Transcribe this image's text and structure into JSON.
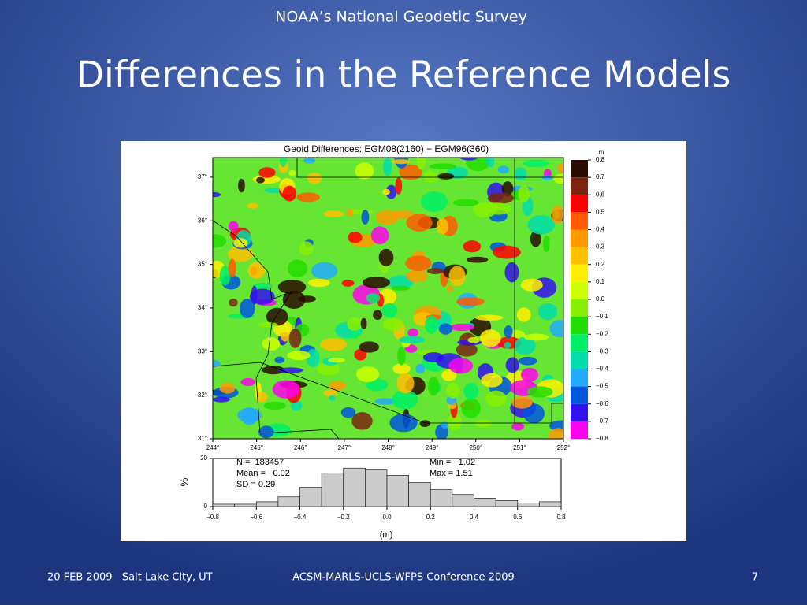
{
  "header": {
    "organization": "NOAA’s National Geodetic Survey",
    "title": "Differences in the Reference Models"
  },
  "map": {
    "title": "Geoid Differences: EGM08(2160) − EGM96(360)",
    "xticks": [
      {
        "value": 244,
        "label": "244°"
      },
      {
        "value": 245,
        "label": "245°"
      },
      {
        "value": 246,
        "label": "246°"
      },
      {
        "value": 247,
        "label": "247°"
      },
      {
        "value": 248,
        "label": "248°"
      },
      {
        "value": 249,
        "label": "249°"
      },
      {
        "value": 250,
        "label": "250°"
      },
      {
        "value": 251,
        "label": "251°"
      },
      {
        "value": 252,
        "label": "252°"
      }
    ],
    "xlim": [
      244,
      252
    ],
    "yticks": [
      {
        "value": 31,
        "label": "31°"
      },
      {
        "value": 32,
        "label": "32°"
      },
      {
        "value": 33,
        "label": "33°"
      },
      {
        "value": 34,
        "label": "34°"
      },
      {
        "value": 35,
        "label": "35°"
      },
      {
        "value": 36,
        "label": "36°"
      },
      {
        "value": 37,
        "label": "37°"
      }
    ],
    "ylim": [
      31,
      37.45
    ],
    "colorbar": {
      "unit": "m",
      "ticks": [
        {
          "value": 0.8,
          "label": "0.8"
        },
        {
          "value": 0.7,
          "label": "0.7"
        },
        {
          "value": 0.6,
          "label": "0.6"
        },
        {
          "value": 0.5,
          "label": "0.5"
        },
        {
          "value": 0.4,
          "label": "0.4"
        },
        {
          "value": 0.3,
          "label": "0.3"
        },
        {
          "value": 0.2,
          "label": "0.2"
        },
        {
          "value": 0.1,
          "label": "0.1"
        },
        {
          "value": 0.0,
          "label": "0.0"
        },
        {
          "value": -0.1,
          "label": "−0.1"
        },
        {
          "value": -0.2,
          "label": "−0.2"
        },
        {
          "value": -0.3,
          "label": "−0.3"
        },
        {
          "value": -0.4,
          "label": "−0.4"
        },
        {
          "value": -0.5,
          "label": "−0.5"
        },
        {
          "value": -0.6,
          "label": "−0.6"
        },
        {
          "value": -0.7,
          "label": "−0.7"
        },
        {
          "value": -0.8,
          "label": "−0.8"
        }
      ],
      "colors": [
        "#2b0c02",
        "#7a2410",
        "#ff0000",
        "#ff5a00",
        "#ff9900",
        "#ffc000",
        "#ffee00",
        "#ccff00",
        "#88ee00",
        "#22dd00",
        "#00ee66",
        "#00ddaa",
        "#22aaff",
        "#0055dd",
        "#3311ee",
        "#ff00ee"
      ]
    }
  },
  "chart_data": {
    "type": "histogram",
    "xlabel": "(m)",
    "ylabel": "%",
    "bins": [
      -0.8,
      -0.7,
      -0.6,
      -0.5,
      -0.4,
      -0.3,
      -0.2,
      -0.1,
      0.0,
      0.1,
      0.2,
      0.3,
      0.4,
      0.5,
      0.6,
      0.7,
      0.8
    ],
    "values": [
      1,
      1,
      2,
      4,
      8,
      14,
      16,
      15.5,
      13,
      10,
      7,
      5,
      3.5,
      2.5,
      1.5,
      2
    ],
    "color": "#cccccc",
    "xlim": [
      -0.8,
      0.8
    ],
    "xticks": [
      {
        "value": -0.8,
        "label": "−0.8"
      },
      {
        "value": -0.6,
        "label": "−0.6"
      },
      {
        "value": -0.4,
        "label": "−0.4"
      },
      {
        "value": -0.2,
        "label": "−0.2"
      },
      {
        "value": 0.0,
        "label": "0.0"
      },
      {
        "value": 0.2,
        "label": "0.2"
      },
      {
        "value": 0.4,
        "label": "0.4"
      },
      {
        "value": 0.6,
        "label": "0.6"
      },
      {
        "value": 0.8,
        "label": "0.8"
      }
    ],
    "ylim": [
      0,
      20
    ],
    "yticks": [
      0,
      20
    ],
    "annotations": [
      "N =  183457",
      "Mean = −0.02",
      "SD = 0.29",
      "Min = −1.02",
      "Max = 1.51"
    ]
  },
  "footer": {
    "date_place": "20 FEB 2009   Salt Lake City, UT",
    "conference": "ACSM-MARLS-UCLS-WFPS Conference 2009",
    "page": "7"
  }
}
